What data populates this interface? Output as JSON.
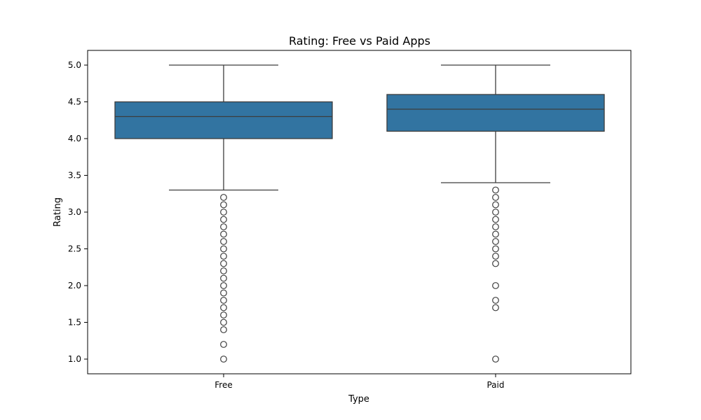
{
  "chart_data": {
    "type": "box",
    "title": "Rating: Free vs Paid Apps",
    "xlabel": "Type",
    "ylabel": "Rating",
    "ylim": [
      0.8,
      5.2
    ],
    "yticks": [
      1.0,
      1.5,
      2.0,
      2.5,
      3.0,
      3.5,
      4.0,
      4.5,
      5.0
    ],
    "ytick_labels": [
      "1.0",
      "1.5",
      "2.0",
      "2.5",
      "3.0",
      "3.5",
      "4.0",
      "4.5",
      "5.0"
    ],
    "categories": [
      "Free",
      "Paid"
    ],
    "boxes": [
      {
        "category": "Free",
        "whisker_low": 3.3,
        "q1": 4.0,
        "median": 4.3,
        "q3": 4.5,
        "whisker_high": 5.0,
        "outliers": [
          3.2,
          3.1,
          3.0,
          2.9,
          2.8,
          2.7,
          2.6,
          2.5,
          2.4,
          2.3,
          2.2,
          2.1,
          2.0,
          1.9,
          1.8,
          1.7,
          1.6,
          1.5,
          1.4,
          1.2,
          1.0
        ]
      },
      {
        "category": "Paid",
        "whisker_low": 3.4,
        "q1": 4.1,
        "median": 4.4,
        "q3": 4.6,
        "whisker_high": 5.0,
        "outliers": [
          3.3,
          3.2,
          3.1,
          3.0,
          2.9,
          2.8,
          2.7,
          2.6,
          2.5,
          2.4,
          2.3,
          2.0,
          1.8,
          1.7,
          1.0
        ]
      }
    ],
    "box_color": "#3274a1",
    "line_color": "#3d3d3d",
    "grid": false
  }
}
